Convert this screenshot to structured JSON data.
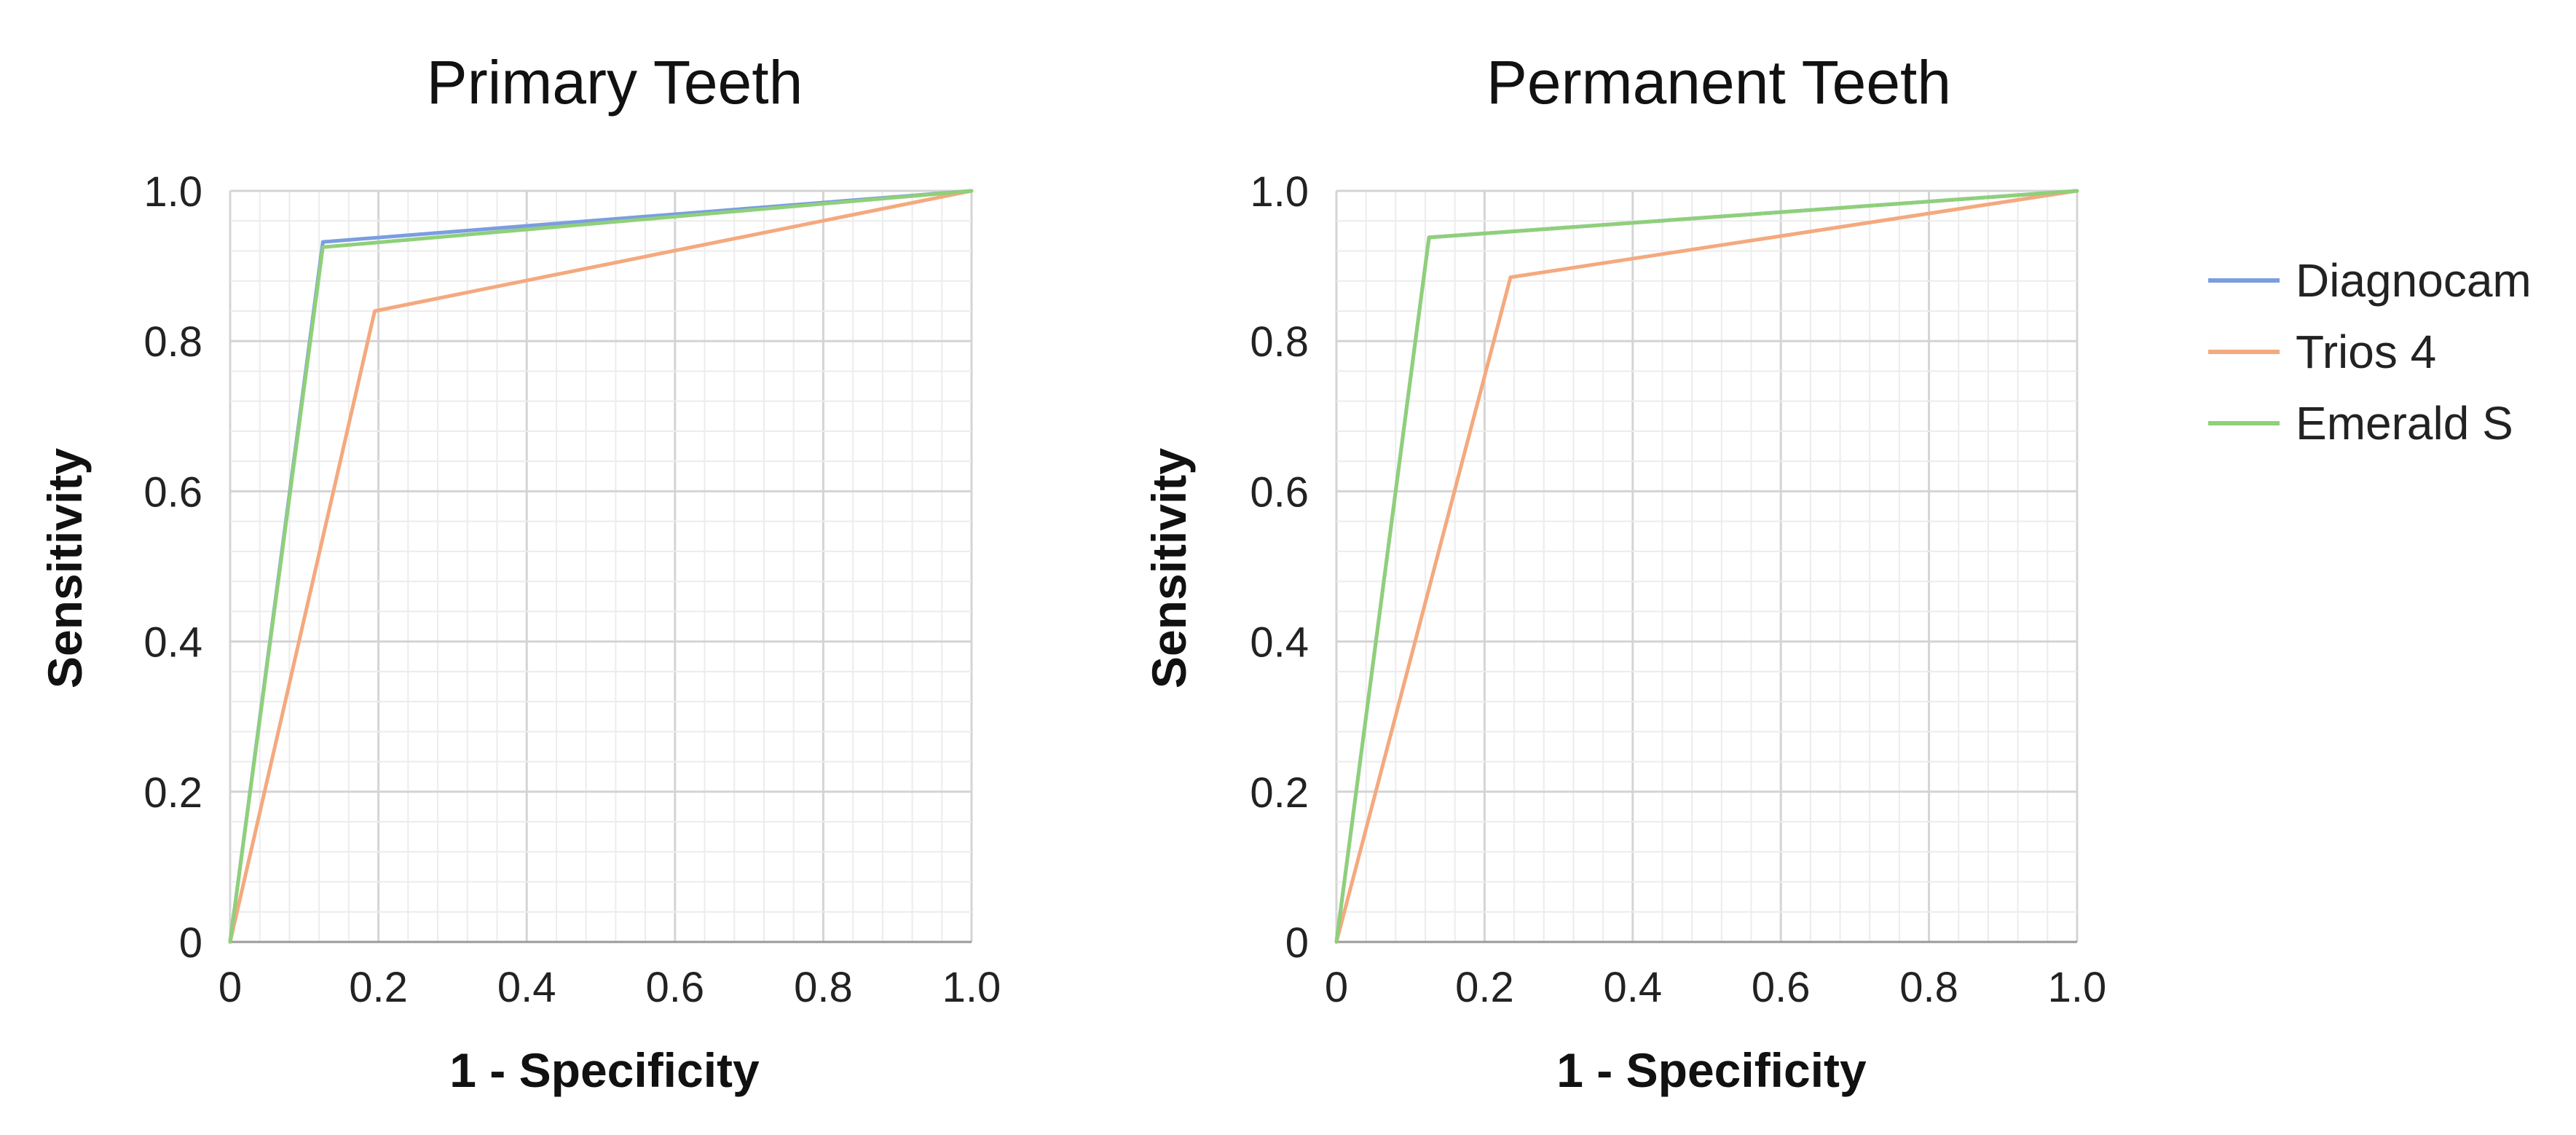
{
  "chart_data": [
    {
      "type": "line",
      "title": "Primary Teeth",
      "xlabel": "1 - Specificity",
      "ylabel": "Sensitivity",
      "xlim": [
        0,
        1
      ],
      "ylim": [
        0,
        1
      ],
      "grid": true,
      "x_ticks": [
        "0",
        "0.2",
        "0.4",
        "0.6",
        "0.8",
        "1.0"
      ],
      "y_ticks": [
        "0",
        "0.2",
        "0.4",
        "0.6",
        "0.8",
        "1.0"
      ],
      "series": [
        {
          "name": "Diagnocam",
          "color": "#7b9de0",
          "x": [
            0,
            0.125,
            1.0
          ],
          "y": [
            0,
            0.932,
            1.0
          ]
        },
        {
          "name": "Trios 4",
          "color": "#f4a97e",
          "x": [
            0,
            0.195,
            1.0
          ],
          "y": [
            0,
            0.84,
            1.0
          ]
        },
        {
          "name": "Emerald S",
          "color": "#8fd07a",
          "x": [
            0,
            0.125,
            1.0
          ],
          "y": [
            0,
            0.925,
            1.0
          ]
        }
      ]
    },
    {
      "type": "line",
      "title": "Permanent Teeth",
      "xlabel": "1 - Specificity",
      "ylabel": "Sensitivity",
      "xlim": [
        0,
        1
      ],
      "ylim": [
        0,
        1
      ],
      "grid": true,
      "x_ticks": [
        "0",
        "0.2",
        "0.4",
        "0.6",
        "0.8",
        "1.0"
      ],
      "y_ticks": [
        "0",
        "0.2",
        "0.4",
        "0.6",
        "0.8",
        "1.0"
      ],
      "series": [
        {
          "name": "Diagnocam",
          "color": "#7b9de0",
          "x": [
            0,
            0.125,
            1.0
          ],
          "y": [
            0,
            0.938,
            1.0
          ]
        },
        {
          "name": "Trios 4",
          "color": "#f4a97e",
          "x": [
            0,
            0.235,
            1.0
          ],
          "y": [
            0,
            0.885,
            1.0
          ]
        },
        {
          "name": "Emerald S",
          "color": "#8fd07a",
          "x": [
            0,
            0.125,
            1.0
          ],
          "y": [
            0,
            0.938,
            1.0
          ]
        }
      ]
    }
  ],
  "legend": {
    "placement": "right",
    "items": [
      {
        "label": "Diagnocam",
        "color": "#7b9de0"
      },
      {
        "label": "Trios 4",
        "color": "#f4a97e"
      },
      {
        "label": "Emerald S",
        "color": "#8fd07a"
      }
    ]
  }
}
